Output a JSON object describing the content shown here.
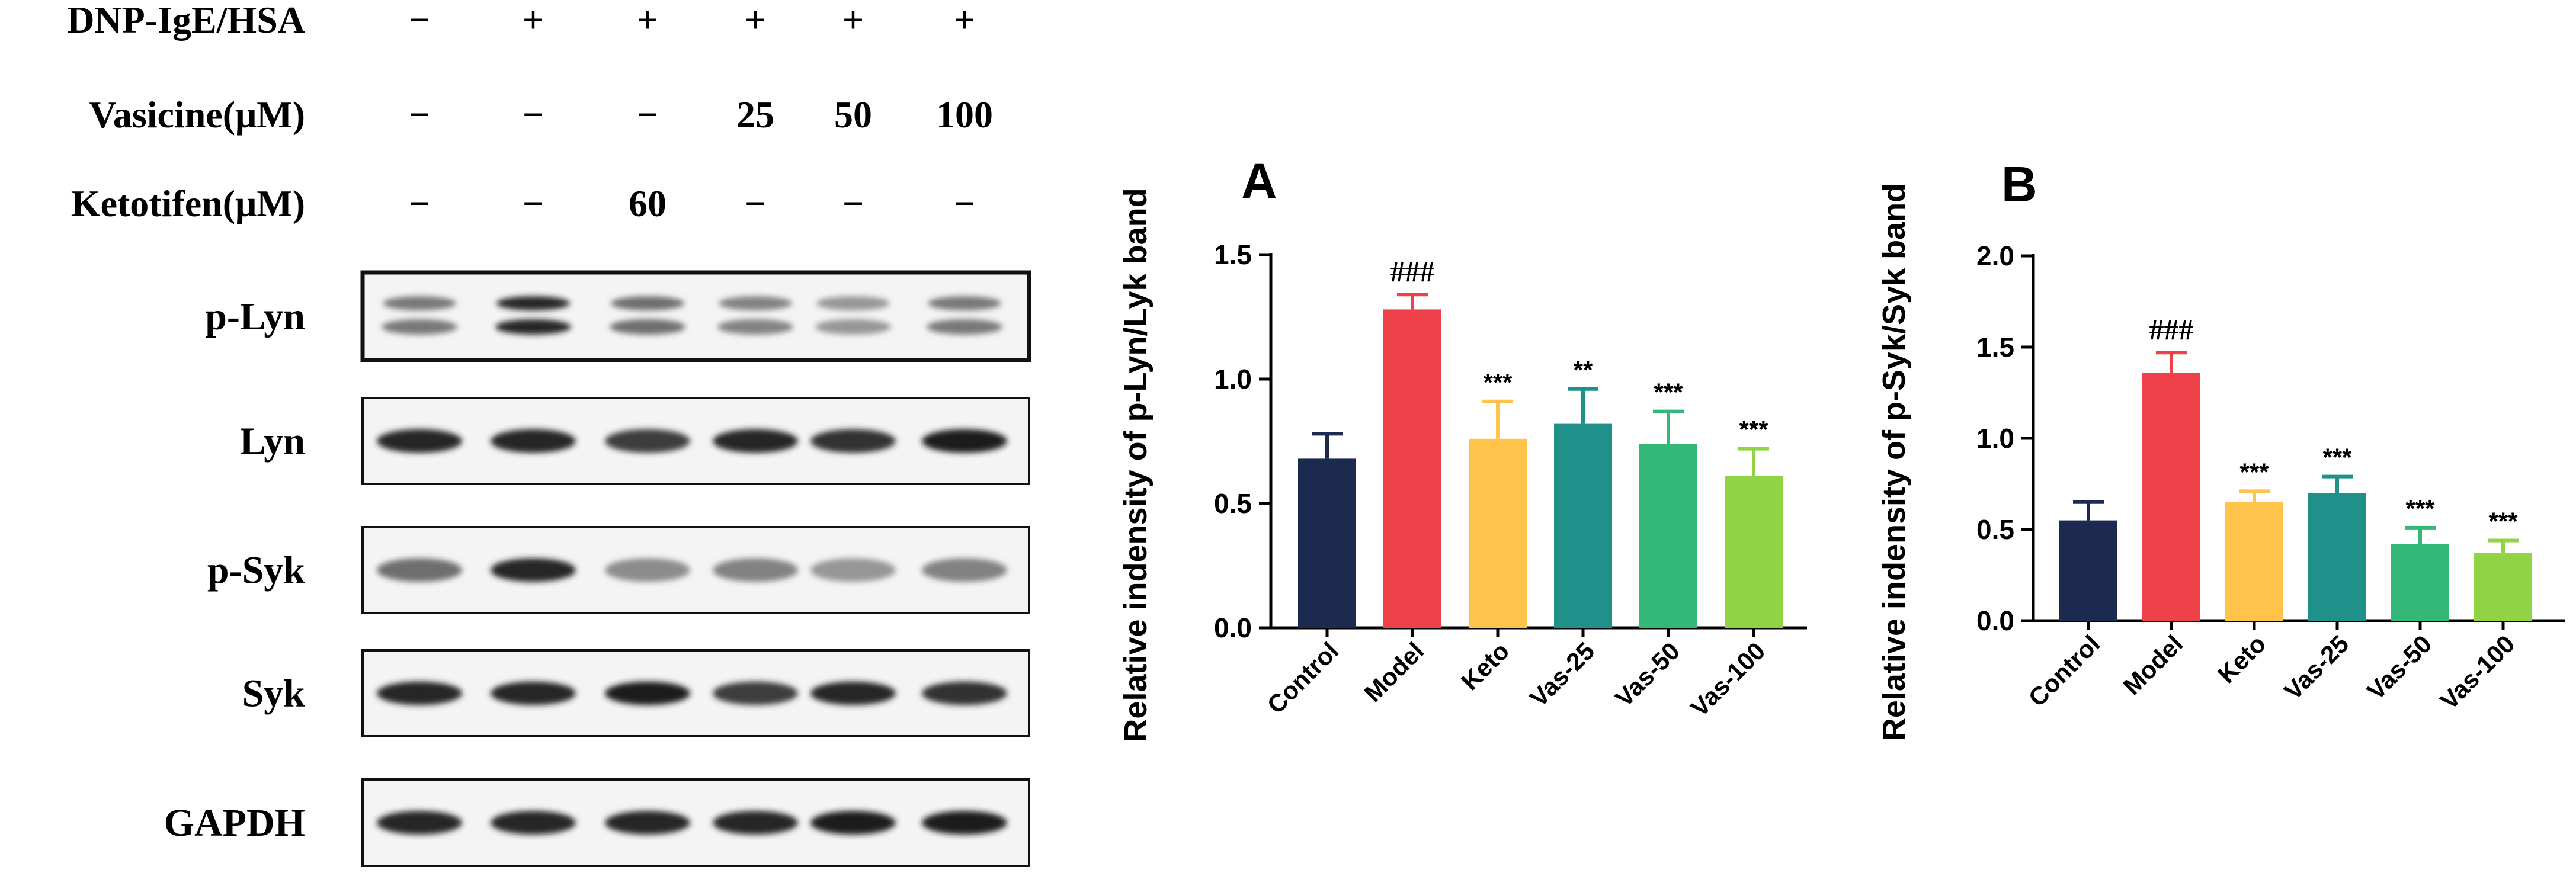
{
  "blot": {
    "treatments": [
      {
        "label": "DNP-IgE/HSA",
        "values": [
          "−",
          "+",
          "+",
          "+",
          "+",
          "+"
        ]
      },
      {
        "label": "Vasicine(μM)",
        "values": [
          "−",
          "−",
          "−",
          "25",
          "50",
          "100"
        ]
      },
      {
        "label": "Ketotifen(μM)",
        "values": [
          "−",
          "−",
          "60",
          "−",
          "−",
          "−"
        ]
      }
    ],
    "bands": [
      {
        "label": "p-Lyn",
        "intensities": [
          0.55,
          0.95,
          0.6,
          0.5,
          0.4,
          0.55
        ],
        "double": true
      },
      {
        "label": "Lyn",
        "intensities": [
          0.95,
          0.95,
          0.85,
          0.95,
          0.9,
          1.0
        ],
        "double": false
      },
      {
        "label": "p-Syk",
        "intensities": [
          0.6,
          0.95,
          0.45,
          0.5,
          0.4,
          0.5
        ],
        "double": false
      },
      {
        "label": "Syk",
        "intensities": [
          0.95,
          0.95,
          1.0,
          0.85,
          0.95,
          0.9
        ],
        "double": false
      },
      {
        "label": "GAPDH",
        "intensities": [
          0.95,
          0.95,
          0.95,
          0.95,
          1.0,
          1.0
        ],
        "double": false
      }
    ]
  },
  "chart_data": [
    {
      "type": "bar",
      "panel": "A",
      "ylabel": "Relative indensity of p-Lyn/Lyk band",
      "categories": [
        "Control",
        "Model",
        "Keto",
        "Vas-25",
        "Vas-50",
        "Vas-100"
      ],
      "values": [
        0.68,
        1.28,
        0.76,
        0.82,
        0.74,
        0.61
      ],
      "errors": [
        0.1,
        0.06,
        0.15,
        0.14,
        0.13,
        0.11
      ],
      "annotations": [
        "",
        "###",
        "***",
        "**",
        "***",
        "***"
      ],
      "colors": [
        "#1b2a4e",
        "#ef4149",
        "#ffc24b",
        "#1f918a",
        "#34b877",
        "#90d446"
      ],
      "ylim": [
        0,
        1.5
      ],
      "yticks": [
        "0.0",
        "0.5",
        "1.0",
        "1.5"
      ]
    },
    {
      "type": "bar",
      "panel": "B",
      "ylabel": "Relative indensity of p-Syk/Syk band",
      "categories": [
        "Control",
        "Model",
        "Keto",
        "Vas-25",
        "Vas-50",
        "Vas-100"
      ],
      "values": [
        0.55,
        1.36,
        0.65,
        0.7,
        0.42,
        0.37
      ],
      "errors": [
        0.1,
        0.11,
        0.06,
        0.09,
        0.09,
        0.07
      ],
      "annotations": [
        "",
        "###",
        "***",
        "***",
        "***",
        "***"
      ],
      "colors": [
        "#1b2a4e",
        "#ef4149",
        "#ffc24b",
        "#1f918a",
        "#34b877",
        "#90d446"
      ],
      "ylim": [
        0,
        2.0
      ],
      "yticks": [
        "0.0",
        "0.5",
        "1.0",
        "1.5",
        "2.0"
      ]
    }
  ]
}
